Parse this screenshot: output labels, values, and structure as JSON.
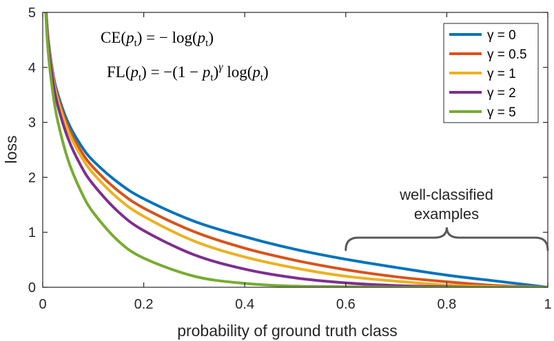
{
  "chart_data": {
    "type": "line",
    "title": "",
    "xlabel": "probability of ground truth class",
    "ylabel": "loss",
    "xlim": [
      0,
      1
    ],
    "ylim": [
      0,
      5
    ],
    "xticks": [
      0,
      0.2,
      0.4,
      0.6,
      0.8,
      1
    ],
    "xtick_labels": [
      "0",
      "0.2",
      "0.4",
      "0.6",
      "0.8",
      "1"
    ],
    "yticks": [
      0,
      1,
      2,
      3,
      4,
      5
    ],
    "ytick_labels": [
      "0",
      "1",
      "2",
      "3",
      "4",
      "5"
    ],
    "grid": false,
    "legend_position": "top-right",
    "x": [
      0.01,
      0.02,
      0.03,
      0.05,
      0.075,
      0.1,
      0.15,
      0.2,
      0.3,
      0.4,
      0.5,
      0.6,
      0.7,
      0.8,
      0.9,
      1.0
    ],
    "series": [
      {
        "name": "γ = 0",
        "color": "#0072BD",
        "values": [
          4.61,
          3.91,
          3.51,
          3.0,
          2.59,
          2.3,
          1.9,
          1.61,
          1.2,
          0.92,
          0.69,
          0.51,
          0.36,
          0.22,
          0.11,
          0.0
        ]
      },
      {
        "name": "γ = 0.5",
        "color": "#D95319",
        "values": [
          4.58,
          3.87,
          3.45,
          2.92,
          2.49,
          2.18,
          1.75,
          1.44,
          1.01,
          0.71,
          0.49,
          0.32,
          0.19,
          0.1,
          0.03,
          0.0
        ]
      },
      {
        "name": "γ = 1",
        "color": "#EDB120",
        "values": [
          4.56,
          3.83,
          3.4,
          2.85,
          2.4,
          2.07,
          1.61,
          1.29,
          0.84,
          0.55,
          0.35,
          0.2,
          0.11,
          0.04,
          0.01,
          0.0
        ]
      },
      {
        "name": "γ = 2",
        "color": "#7E2F8E",
        "values": [
          4.52,
          3.76,
          3.3,
          2.71,
          2.22,
          1.87,
          1.37,
          1.03,
          0.59,
          0.33,
          0.17,
          0.08,
          0.03,
          0.01,
          0.0,
          0.0
        ]
      },
      {
        "name": "γ = 5",
        "color": "#77AC30",
        "values": [
          4.38,
          3.54,
          3.01,
          2.32,
          1.76,
          1.36,
          0.84,
          0.53,
          0.2,
          0.07,
          0.02,
          0.01,
          0.0,
          0.0,
          0.0,
          0.0
        ]
      }
    ],
    "annotations": {
      "formula_ce": "CE(p_t) = −log(p_t)",
      "formula_fl": "FL(p_t) = −(1 − p_t)^γ log(p_t)",
      "bracket_label_line1": "well-classified",
      "bracket_label_line2": "examples",
      "bracket_x_range": [
        0.6,
        1.0
      ]
    }
  }
}
